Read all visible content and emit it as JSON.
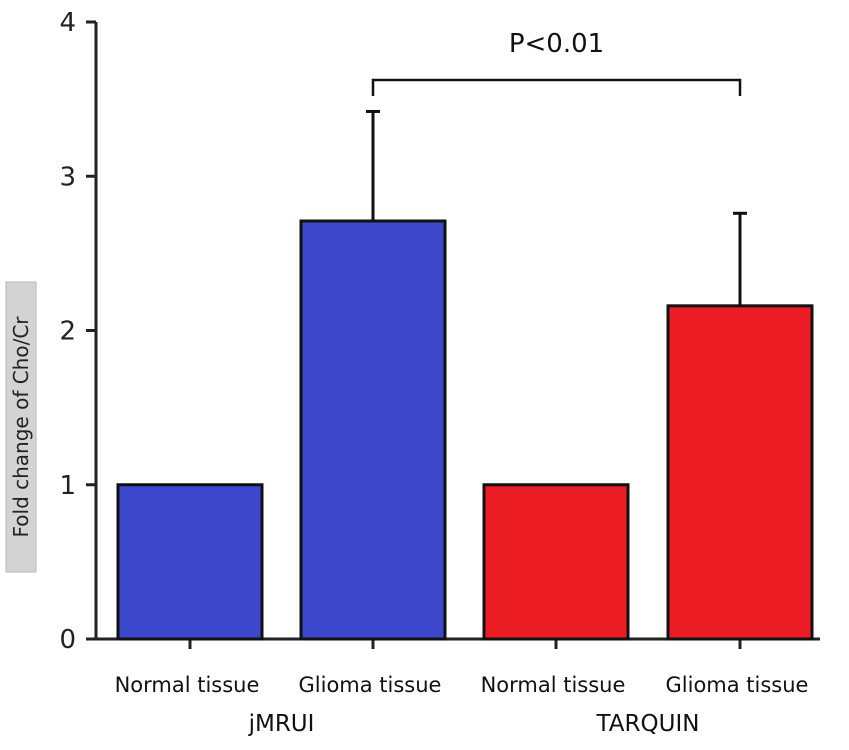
{
  "chart_data": {
    "type": "bar",
    "ylabel": "Fold change of Cho/Cr",
    "ylim": [
      0,
      4
    ],
    "yticks": [
      "0",
      "1",
      "2",
      "3",
      "4"
    ],
    "bars": [
      {
        "category": "Normal tissue",
        "group": "jMRUI",
        "value": 1.0,
        "error": 0,
        "color": "#3d47cb"
      },
      {
        "category": "Glioma tissue",
        "group": "jMRUI",
        "value": 2.71,
        "error": 0.71,
        "color": "#3d47cb"
      },
      {
        "category": "Normal tissue",
        "group": "TARQUIN",
        "value": 1.0,
        "error": 0,
        "color": "#ec1c24"
      },
      {
        "category": "Glioma tissue",
        "group": "TARQUIN",
        "value": 2.16,
        "error": 0.6,
        "color": "#ec1c24"
      }
    ],
    "groups": [
      "jMRUI",
      "TARQUIN"
    ],
    "annotation": {
      "text": "P<0.01",
      "from_bar": 1,
      "to_bar": 3
    }
  }
}
